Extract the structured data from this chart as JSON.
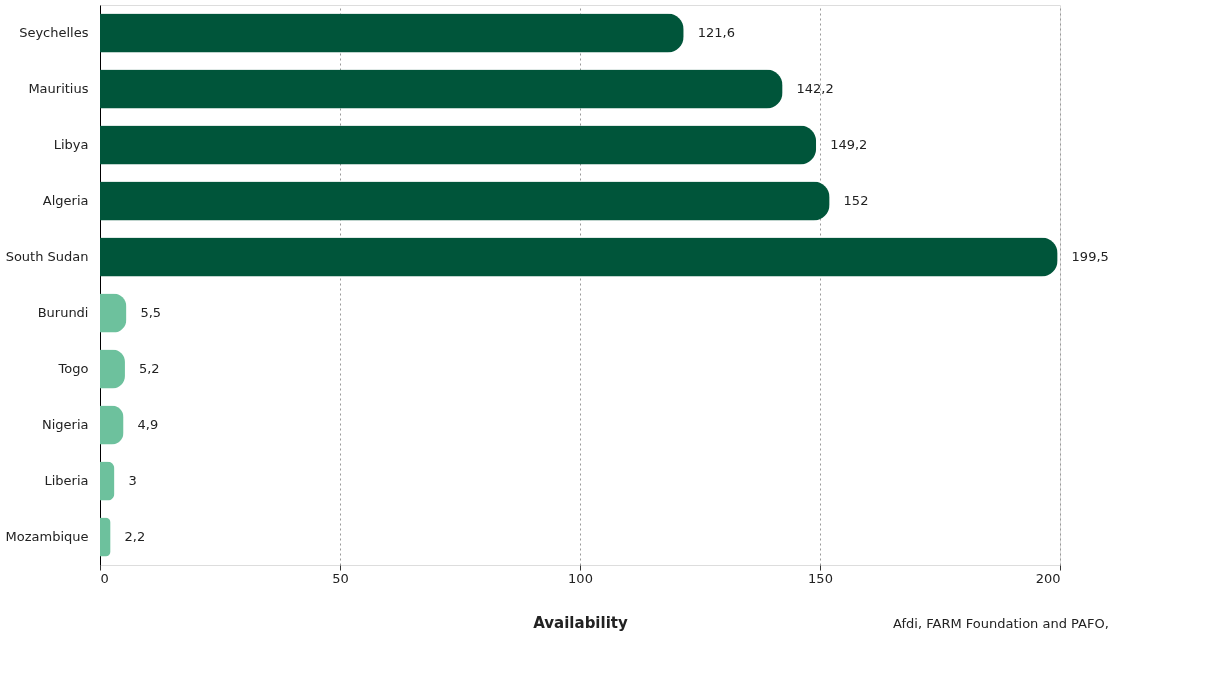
{
  "chart_data": {
    "type": "bar",
    "orientation": "horizontal",
    "xlabel": "Availability",
    "categories": [
      "Seychelles",
      "Mauritius",
      "Libya",
      "Algeria",
      "South Sudan",
      "Burundi",
      "Togo",
      "Nigeria",
      "Liberia",
      "Mozambique"
    ],
    "values": [
      121.6,
      142.2,
      149.2,
      152,
      199.5,
      5.5,
      5.2,
      4.9,
      3,
      2.2
    ],
    "value_labels": [
      "121,6",
      "142,2",
      "149,2",
      "152",
      "199,5",
      "5,5",
      "5,2",
      "4,9",
      "3",
      "2,2"
    ],
    "colors": [
      "#00553a",
      "#00553a",
      "#00553a",
      "#00553a",
      "#00553a",
      "#6dc19d",
      "#6dc19d",
      "#6dc19d",
      "#6dc19d",
      "#6dc19d"
    ],
    "xlim": [
      0,
      200
    ],
    "xticks": [
      0,
      50,
      100,
      150,
      200
    ],
    "grid": "x",
    "annotations": [
      "Afdi, FARM Foundation and PAFO,"
    ]
  }
}
